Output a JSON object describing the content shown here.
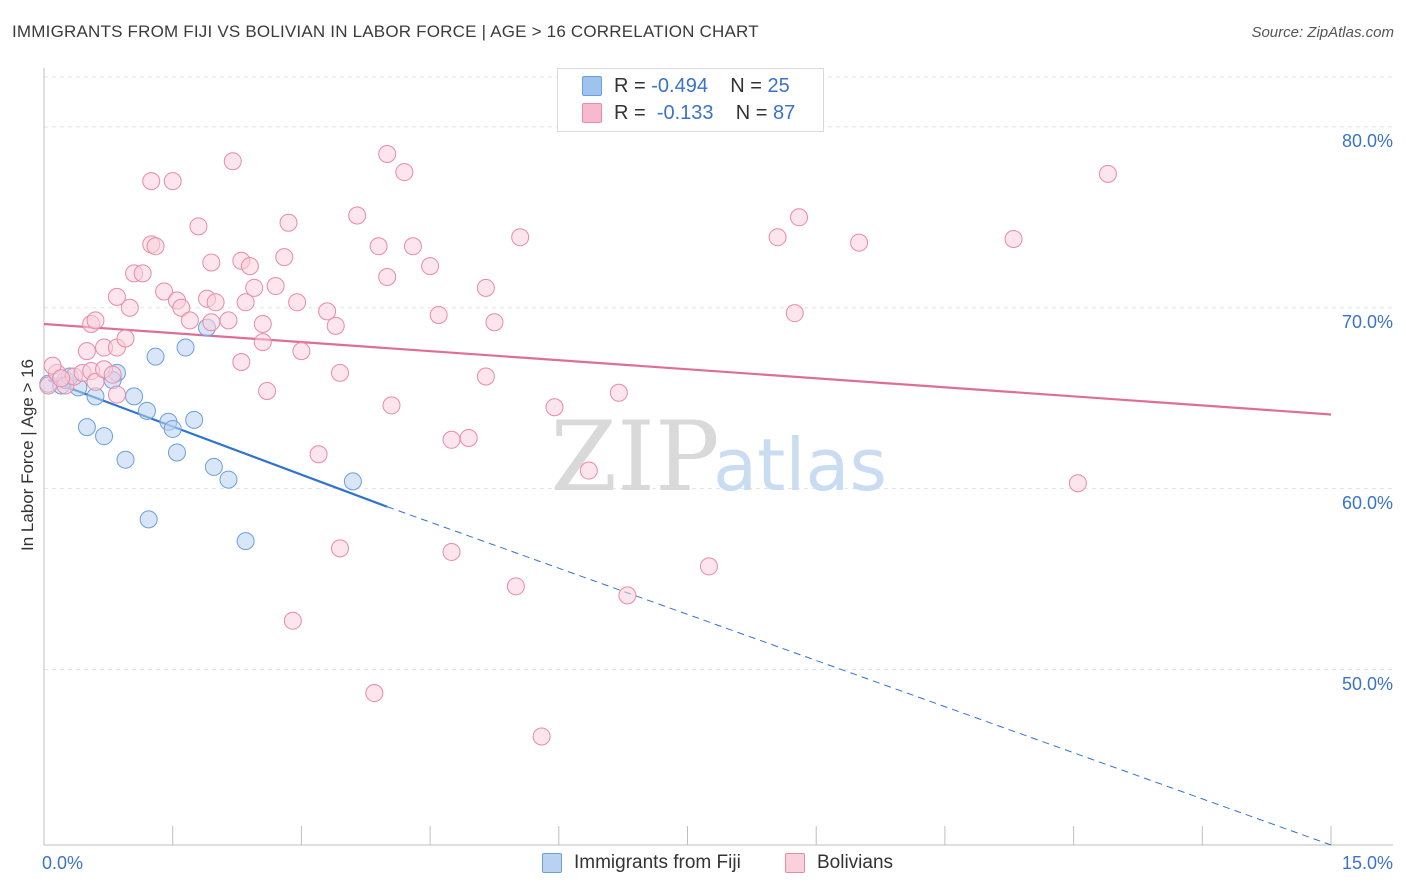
{
  "title": "IMMIGRANTS FROM FIJI VS BOLIVIAN IN LABOR FORCE | AGE > 16 CORRELATION CHART",
  "source": "Source: ZipAtlas.com",
  "watermark": {
    "zip": "ZIP",
    "atlas": "atlas"
  },
  "legend": {
    "rows": [
      {
        "r_label": "R =",
        "r_value": "-0.494",
        "n_label": "N =",
        "n_value": "25",
        "color": "#9fc3ee",
        "border": "#6b9fdc"
      },
      {
        "r_label": "R =",
        "r_value": "-0.133",
        "n_label": "N =",
        "n_value": "87",
        "color": "#f7b9cc",
        "border": "#e98aa8"
      }
    ]
  },
  "bottom_legend": [
    {
      "label": "Immigrants from Fiji",
      "color": "#b9d2f1",
      "border": "#6b9fdc"
    },
    {
      "label": "Bolivians",
      "color": "#fad0dc",
      "border": "#e98aa8"
    }
  ],
  "chart_data": {
    "type": "scatter",
    "title": "IMMIGRANTS FROM FIJI VS BOLIVIAN IN LABOR FORCE | AGE > 16 CORRELATION CHART",
    "xlabel": "",
    "ylabel": "In Labor Force | Age > 16",
    "xlim": [
      0,
      15
    ],
    "ylim": [
      40.3,
      82.7
    ],
    "x_tick_labels": {
      "left": "0.0%",
      "right": "15.0%"
    },
    "y_ticks": [
      {
        "value": 50,
        "label": "50.0%"
      },
      {
        "value": 60,
        "label": "60.0%"
      },
      {
        "value": 70,
        "label": "70.0%"
      },
      {
        "value": 80,
        "label": "80.0%"
      }
    ],
    "grid": true,
    "series": [
      {
        "name": "Immigrants from Fiji",
        "color": "#6b9fdc",
        "fill": "#b9d2f1",
        "trend": {
          "x1": 0.05,
          "y1": 66.0,
          "x2": 4.0,
          "y2": 59.0,
          "dash_to_x": 15.0,
          "dash_to_y": 40.3,
          "color": "#2f74d0"
        },
        "points": [
          [
            0.05,
            65.8
          ],
          [
            0.2,
            65.7
          ],
          [
            0.25,
            66.0
          ],
          [
            0.4,
            65.6
          ],
          [
            0.6,
            65.1
          ],
          [
            0.85,
            66.4
          ],
          [
            0.8,
            66.0
          ],
          [
            1.05,
            65.1
          ],
          [
            1.3,
            67.3
          ],
          [
            1.65,
            67.8
          ],
          [
            1.9,
            68.9
          ],
          [
            0.5,
            63.4
          ],
          [
            0.7,
            62.9
          ],
          [
            1.2,
            64.3
          ],
          [
            1.45,
            63.7
          ],
          [
            1.5,
            63.3
          ],
          [
            1.75,
            63.8
          ],
          [
            0.95,
            61.6
          ],
          [
            1.55,
            62.0
          ],
          [
            1.98,
            61.2
          ],
          [
            2.15,
            60.5
          ],
          [
            3.6,
            60.4
          ],
          [
            1.22,
            58.3
          ],
          [
            2.35,
            57.1
          ],
          [
            0.3,
            66.2
          ]
        ]
      },
      {
        "name": "Bolivians",
        "color": "#e98aa8",
        "fill": "#fad0dc",
        "trend": {
          "x1": 0.0,
          "y1": 69.1,
          "x2": 15.0,
          "y2": 64.1,
          "color": "#e06d96"
        },
        "points": [
          [
            0.05,
            65.7
          ],
          [
            0.15,
            66.4
          ],
          [
            0.25,
            65.7
          ],
          [
            0.35,
            66.2
          ],
          [
            0.45,
            66.4
          ],
          [
            0.55,
            66.5
          ],
          [
            0.6,
            65.9
          ],
          [
            0.7,
            66.6
          ],
          [
            0.8,
            66.3
          ],
          [
            0.1,
            66.8
          ],
          [
            0.2,
            66.1
          ],
          [
            0.85,
            65.2
          ],
          [
            0.5,
            67.6
          ],
          [
            0.55,
            69.1
          ],
          [
            0.6,
            69.3
          ],
          [
            0.7,
            67.8
          ],
          [
            0.85,
            67.8
          ],
          [
            0.95,
            68.3
          ],
          [
            1.0,
            70.0
          ],
          [
            0.85,
            70.6
          ],
          [
            1.05,
            71.9
          ],
          [
            1.15,
            71.9
          ],
          [
            1.25,
            73.5
          ],
          [
            1.3,
            73.4
          ],
          [
            1.25,
            77.0
          ],
          [
            1.5,
            77.0
          ],
          [
            1.4,
            70.9
          ],
          [
            1.55,
            70.4
          ],
          [
            1.6,
            70.0
          ],
          [
            1.7,
            69.3
          ],
          [
            1.9,
            70.5
          ],
          [
            1.95,
            69.2
          ],
          [
            1.8,
            74.5
          ],
          [
            1.95,
            72.5
          ],
          [
            2.0,
            70.3
          ],
          [
            2.2,
            78.1
          ],
          [
            2.15,
            69.3
          ],
          [
            2.3,
            72.6
          ],
          [
            2.4,
            72.3
          ],
          [
            2.35,
            70.3
          ],
          [
            2.3,
            67.0
          ],
          [
            2.45,
            71.1
          ],
          [
            2.55,
            68.1
          ],
          [
            2.55,
            69.1
          ],
          [
            2.6,
            65.4
          ],
          [
            2.7,
            71.2
          ],
          [
            2.8,
            72.8
          ],
          [
            2.85,
            74.7
          ],
          [
            2.95,
            70.3
          ],
          [
            3.0,
            67.6
          ],
          [
            3.3,
            69.8
          ],
          [
            3.4,
            69.0
          ],
          [
            3.45,
            66.4
          ],
          [
            3.65,
            75.1
          ],
          [
            3.9,
            73.4
          ],
          [
            4.0,
            78.5
          ],
          [
            4.0,
            71.7
          ],
          [
            4.05,
            64.6
          ],
          [
            4.2,
            77.5
          ],
          [
            4.3,
            73.4
          ],
          [
            4.5,
            72.3
          ],
          [
            4.6,
            69.6
          ],
          [
            4.75,
            62.7
          ],
          [
            4.95,
            62.8
          ],
          [
            5.15,
            66.2
          ],
          [
            5.15,
            71.1
          ],
          [
            5.25,
            69.2
          ],
          [
            5.55,
            73.9
          ],
          [
            5.95,
            64.5
          ],
          [
            6.35,
            61.0
          ],
          [
            6.7,
            65.3
          ],
          [
            3.2,
            61.9
          ],
          [
            3.85,
            48.7
          ],
          [
            2.9,
            52.7
          ],
          [
            3.45,
            56.7
          ],
          [
            4.75,
            56.5
          ],
          [
            5.5,
            54.6
          ],
          [
            5.8,
            46.3
          ],
          [
            6.8,
            54.1
          ],
          [
            7.75,
            55.7
          ],
          [
            8.75,
            69.7
          ],
          [
            8.8,
            75.0
          ],
          [
            9.5,
            73.6
          ],
          [
            8.55,
            73.9
          ],
          [
            11.3,
            73.8
          ],
          [
            12.05,
            60.3
          ],
          [
            12.4,
            77.4
          ]
        ]
      }
    ]
  }
}
